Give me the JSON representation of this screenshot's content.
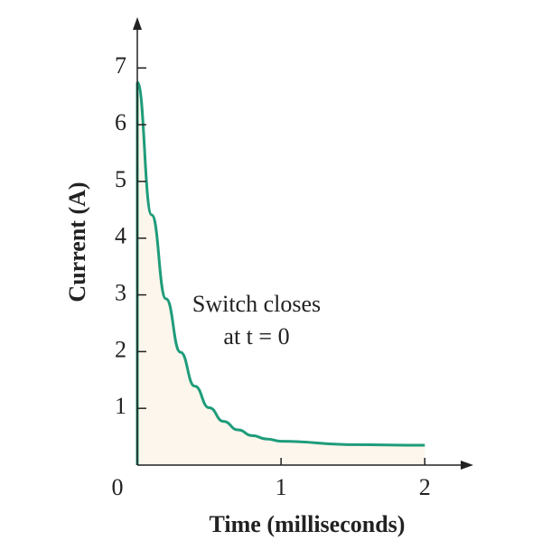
{
  "chart_data": {
    "type": "area",
    "x": [
      0,
      0.1,
      0.2,
      0.3,
      0.4,
      0.5,
      0.6,
      0.7,
      0.8,
      0.9,
      1.0,
      1.5,
      2.0
    ],
    "values": [
      6.75,
      4.41,
      2.93,
      1.99,
      1.39,
      1.01,
      0.77,
      0.62,
      0.52,
      0.46,
      0.42,
      0.36,
      0.35
    ],
    "color": "#1e9c7a",
    "fill_color": "#fdf6ec",
    "xlabel": "Time (milliseconds)",
    "ylabel": "Current (A)",
    "xlim": [
      0,
      2.3
    ],
    "ylim": [
      0,
      7.8
    ],
    "xticks": [
      0,
      1,
      2
    ],
    "yticks": [
      1,
      2,
      3,
      4,
      5,
      6,
      7
    ],
    "annotation": [
      "Switch closes",
      "at t = 0"
    ]
  }
}
